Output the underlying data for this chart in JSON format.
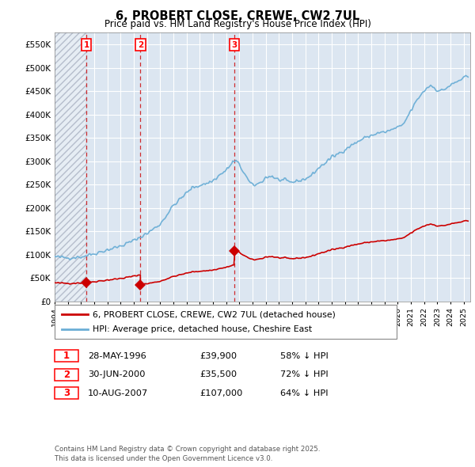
{
  "title": "6, PROBERT CLOSE, CREWE, CW2 7UL",
  "subtitle": "Price paid vs. HM Land Registry's House Price Index (HPI)",
  "background_color": "#ffffff",
  "plot_bg_color": "#dce6f1",
  "grid_color": "#ffffff",
  "ylim": [
    0,
    575000
  ],
  "yticks": [
    0,
    50000,
    100000,
    150000,
    200000,
    250000,
    300000,
    350000,
    400000,
    450000,
    500000,
    550000
  ],
  "ytick_labels": [
    "£0",
    "£50K",
    "£100K",
    "£150K",
    "£200K",
    "£250K",
    "£300K",
    "£350K",
    "£400K",
    "£450K",
    "£500K",
    "£550K"
  ],
  "xlim_start": 1994.0,
  "xlim_end": 2025.5,
  "hpi_color": "#6baed6",
  "price_color": "#cc0000",
  "vline_color": "#cc0000",
  "sales": [
    {
      "year": 1996.41,
      "price": 39900,
      "label": "1"
    },
    {
      "year": 2000.5,
      "price": 35500,
      "label": "2"
    },
    {
      "year": 2007.61,
      "price": 107000,
      "label": "3"
    }
  ],
  "legend_labels": [
    "6, PROBERT CLOSE, CREWE, CW2 7UL (detached house)",
    "HPI: Average price, detached house, Cheshire East"
  ],
  "table_data": [
    {
      "num": "1",
      "date": "28-MAY-1996",
      "price": "£39,900",
      "hpi": "58% ↓ HPI"
    },
    {
      "num": "2",
      "date": "30-JUN-2000",
      "price": "£35,500",
      "hpi": "72% ↓ HPI"
    },
    {
      "num": "3",
      "date": "10-AUG-2007",
      "price": "£107,000",
      "hpi": "64% ↓ HPI"
    }
  ],
  "footer": "Contains HM Land Registry data © Crown copyright and database right 2025.\nThis data is licensed under the Open Government Licence v3.0."
}
